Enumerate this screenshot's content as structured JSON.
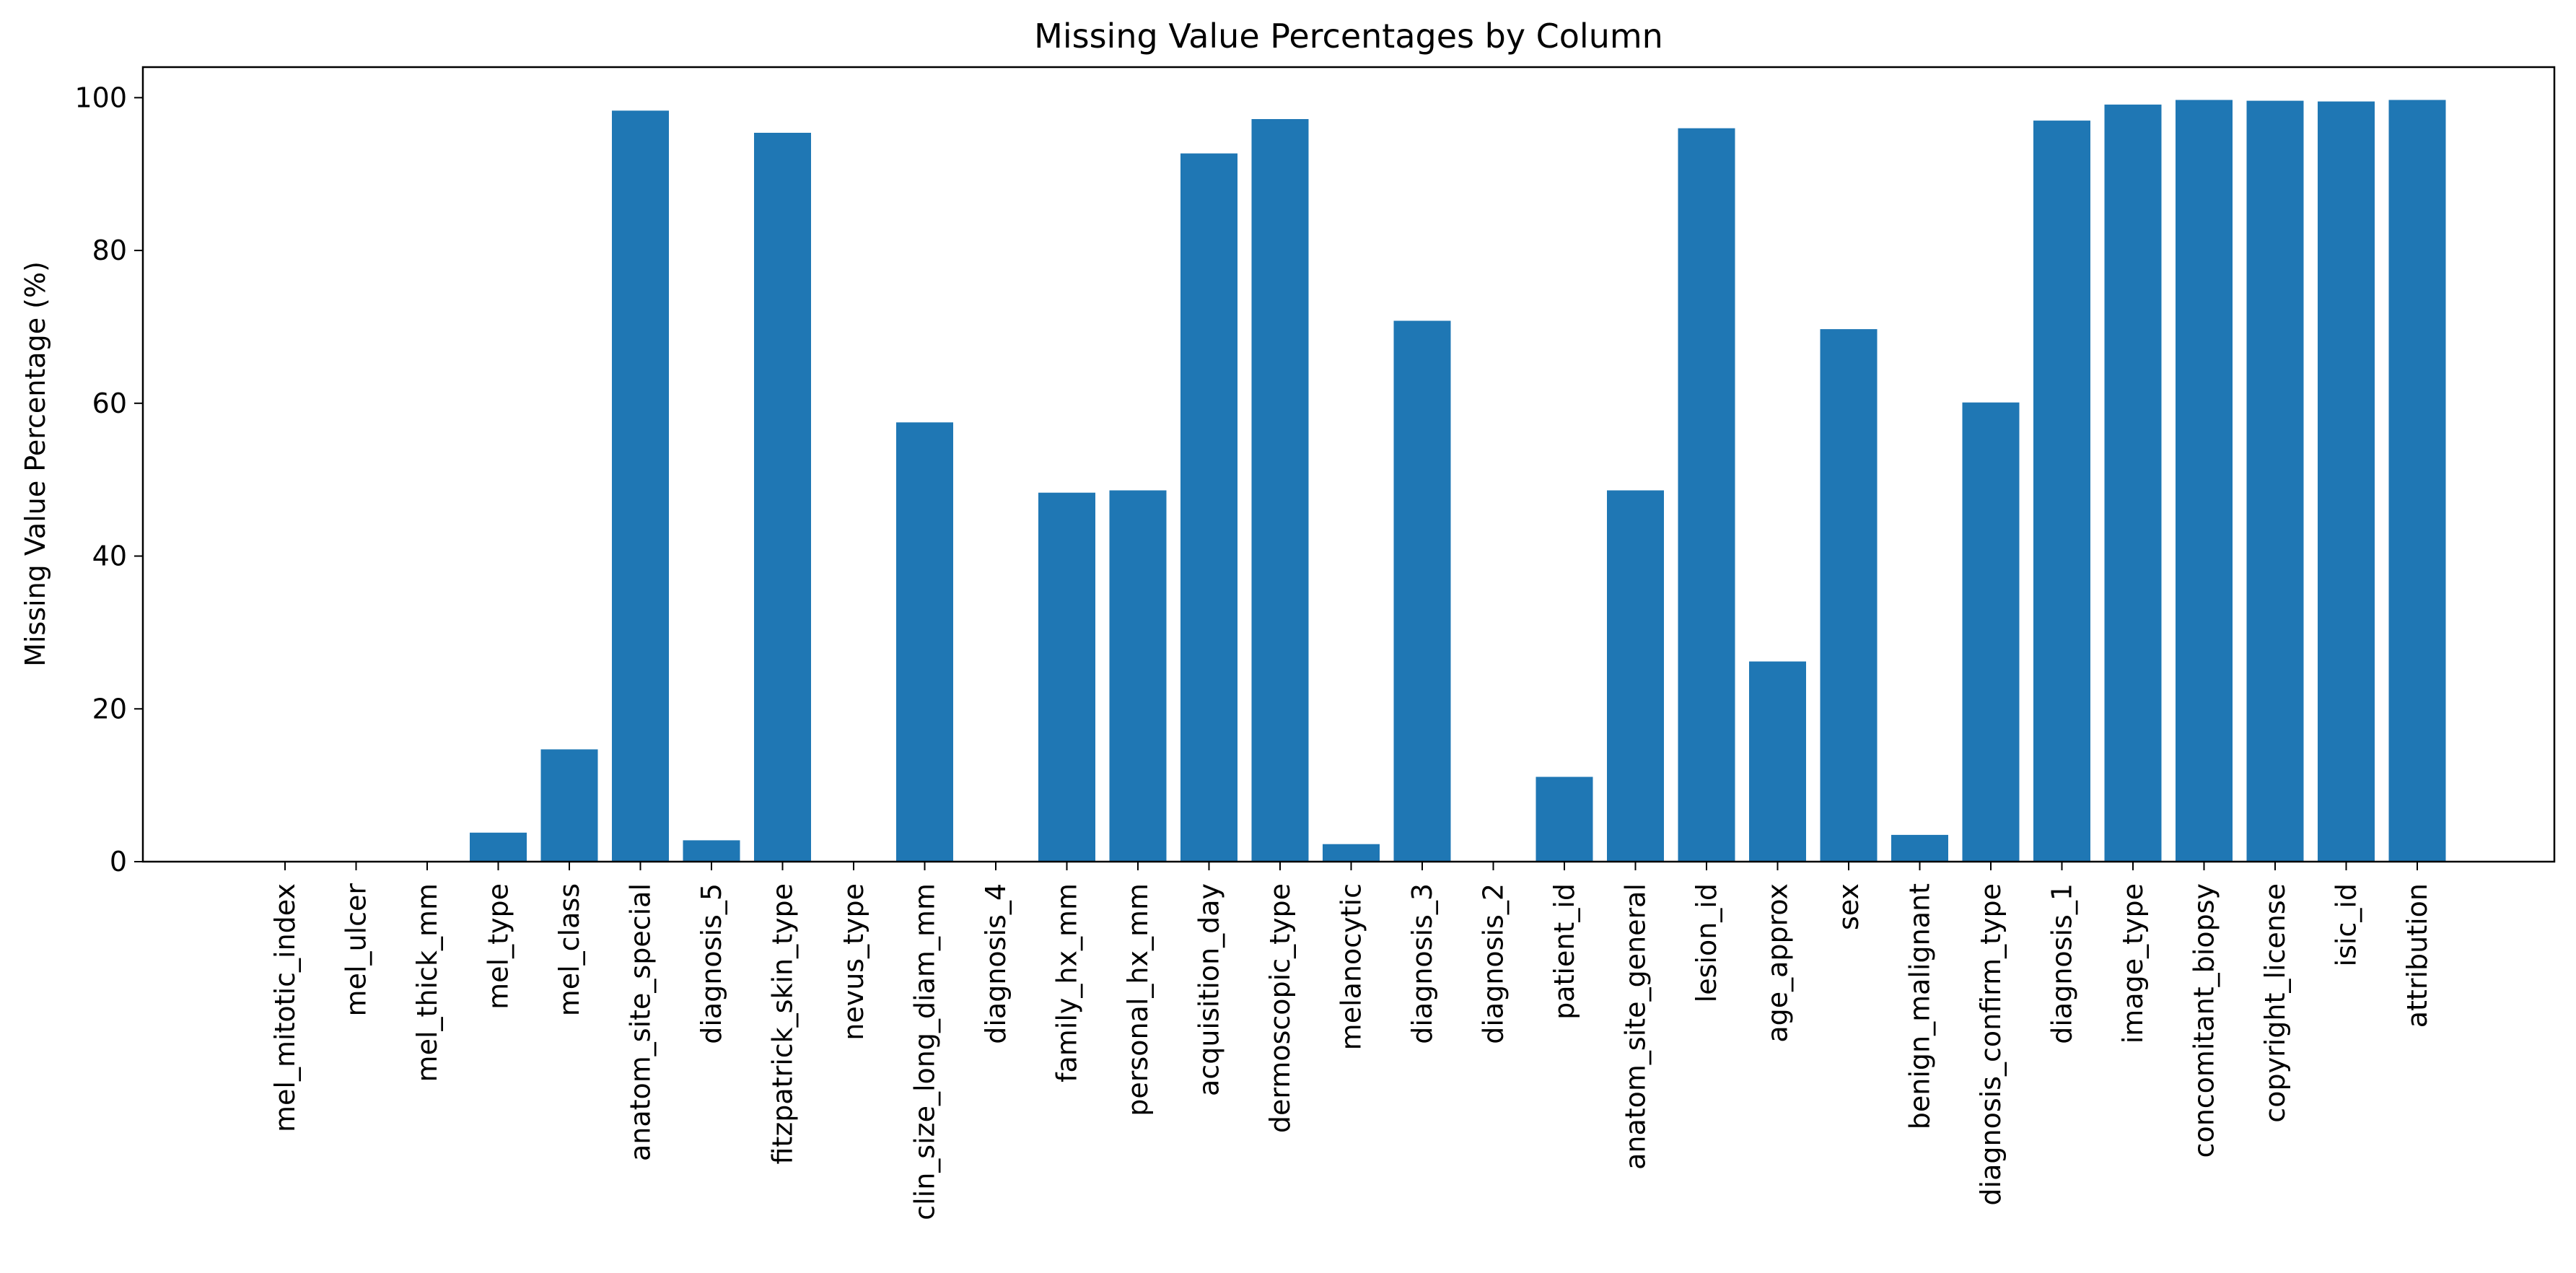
{
  "chart_data": {
    "type": "bar",
    "title": "Missing Value Percentages by Column",
    "xlabel": "",
    "ylabel": "Missing Value Percentage (%)",
    "ylim": [
      0,
      104
    ],
    "yticks": [
      0,
      20,
      40,
      60,
      80,
      100
    ],
    "grid": false,
    "bar_color": "#1f77b4",
    "categories": [
      "mel_mitotic_index",
      "mel_ulcer",
      "mel_thick_mm",
      "mel_type",
      "mel_class",
      "anatom_site_special",
      "diagnosis_5",
      "fitzpatrick_skin_type",
      "nevus_type",
      "clin_size_long_diam_mm",
      "diagnosis_4",
      "family_hx_mm",
      "personal_hx_mm",
      "acquisition_day",
      "dermoscopic_type",
      "melanocytic",
      "diagnosis_3",
      "diagnosis_2",
      "patient_id",
      "anatom_site_general",
      "lesion_id",
      "age_approx",
      "sex",
      "benign_malignant",
      "diagnosis_confirm_type",
      "diagnosis_1",
      "image_type",
      "concomitant_biopsy",
      "copyright_license",
      "isic_id",
      "attribution"
    ],
    "values": [
      0,
      0,
      0,
      3.8,
      14.7,
      98.3,
      2.8,
      95.4,
      0,
      57.5,
      0,
      48.3,
      48.6,
      92.7,
      97.2,
      2.3,
      70.8,
      0,
      11.1,
      48.6,
      96.0,
      26.2,
      69.7,
      3.5,
      60.1,
      97.0,
      99.1,
      99.7,
      99.6,
      99.5,
      99.7
    ]
  }
}
